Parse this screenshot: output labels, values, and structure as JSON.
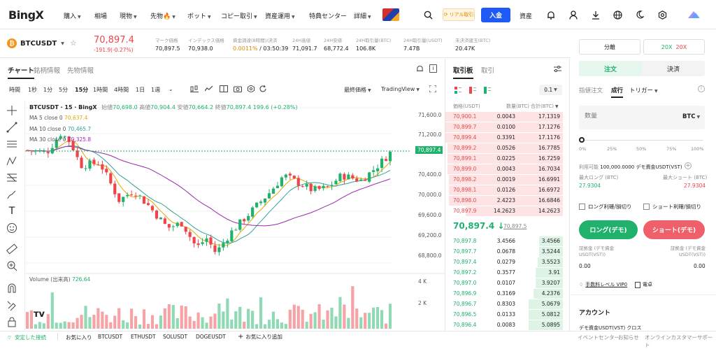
{
  "nav": {
    "logo": "BingX",
    "items": [
      "購入",
      "相場",
      "現物",
      "先物",
      "ボット",
      "コピー取引",
      "資産運用",
      "特典センター",
      "詳細"
    ],
    "reward_label": "リアル取引",
    "deposit_label": "入金",
    "assets_label": "資産"
  },
  "ticker": {
    "symbol": "BTCUSDT",
    "price": "70,897.4",
    "change": "-191.9(-0.27%)",
    "stats": [
      {
        "label": "マーク価格",
        "value": "70,897.5"
      },
      {
        "label": "インデックス価格",
        "value": "70,938.0"
      },
      {
        "label": "資金調達(8時間)/決済",
        "value": "0.0011%",
        "value2": "/ 03:50:39"
      },
      {
        "label": "24H高値",
        "value": "71,091.7"
      },
      {
        "label": "24H安値",
        "value": "68,772.4"
      },
      {
        "label": "24H取引量(BTC)",
        "value": "106.8K"
      },
      {
        "label": "24H取引量(USDT)",
        "value": "7.47B"
      },
      {
        "label": "未決済建玉(BTC)",
        "value": "20.47K"
      }
    ]
  },
  "chart": {
    "tabs": [
      "チャート",
      "銘柄情報",
      "先物情報"
    ],
    "timeframes": [
      "時間",
      "1秒",
      "1分",
      "5分",
      "15分",
      "1時間",
      "4時間",
      "1日",
      "1週"
    ],
    "price_type": "最終価格",
    "view": "TradingView",
    "title": "BTCUSDT · 15 · BingX",
    "ohlc": {
      "o_label": "始値",
      "o": "70,698.0",
      "h_label": "高値",
      "h": "70,904.4",
      "l_label": "安値",
      "l": "70,664.2",
      "c_label": "終値",
      "c": "70,897.4",
      "chg": "199.6 (+0.28%)"
    },
    "ma": [
      {
        "label": "MA 5 close 0",
        "value": "70,637.4",
        "color": "#e6a700"
      },
      {
        "label": "MA 10 close 0",
        "value": "70,465.7",
        "color": "#2fa39a"
      },
      {
        "label": "MA 30 close 0",
        "value": "70,325.8",
        "color": "#9c27b0"
      }
    ],
    "price_axis": [
      "71,600.0",
      "71,200.0",
      "70,400.0",
      "70,000.0",
      "69,600.0",
      "69,200.0",
      "68,800.0"
    ],
    "current_price_tag": "70,897.4",
    "volume_label": "Volume (出来高)",
    "volume_value": "726.64",
    "vol_axis": [
      "4 K",
      "2 K"
    ]
  },
  "orderbook": {
    "tabs": [
      "取引板",
      "取引"
    ],
    "step": "0.1",
    "headers": [
      "価格(USDT)",
      "数量(BTC)",
      "合計(BTC)"
    ],
    "asks": [
      [
        "70,900.1",
        "0.0043",
        "17.1319"
      ],
      [
        "70,899.7",
        "0.0100",
        "17.1276"
      ],
      [
        "70,899.4",
        "0.3391",
        "17.1176"
      ],
      [
        "70,899.2",
        "0.0526",
        "16.7785"
      ],
      [
        "70,899.1",
        "0.0225",
        "16.7259"
      ],
      [
        "70,899.0",
        "0.0043",
        "16.7034"
      ],
      [
        "70,898.2",
        "0.0019",
        "16.6991"
      ],
      [
        "70,898.1",
        "0.0126",
        "16.6972"
      ],
      [
        "70,898.0",
        "2.4223",
        "16.6846"
      ],
      [
        "70,897.9",
        "14.2623",
        "14.2623"
      ]
    ],
    "mid_price": "70,897.4",
    "mid_arrow": "↓",
    "mark_price": "70,897.5",
    "bids": [
      [
        "70,897.8",
        "3.4566",
        "3.4566"
      ],
      [
        "70,897.7",
        "0.0678",
        "3.5244"
      ],
      [
        "70,897.4",
        "0.0279",
        "3.5523"
      ],
      [
        "70,897.2",
        "0.3577",
        "3.91"
      ],
      [
        "70,897.0",
        "0.0107",
        "3.9207"
      ],
      [
        "70,896.9",
        "0.3169",
        "4.2376"
      ],
      [
        "70,896.7",
        "0.8303",
        "5.0679"
      ],
      [
        "70,896.5",
        "0.0133",
        "5.0812"
      ],
      [
        "70,896.4",
        "0.0083",
        "5.0895"
      ]
    ],
    "ask_depth": [
      0.99,
      0.99,
      0.99,
      0.97,
      0.97,
      0.97,
      0.96,
      0.96,
      0.96,
      0.82
    ],
    "bid_depth": [
      0.2,
      0.2,
      0.21,
      0.23,
      0.23,
      0.25,
      0.29,
      0.29,
      0.29
    ]
  },
  "trade": {
    "margin_mode": "分離",
    "leverage_long": "20X",
    "leverage_short": "20X",
    "side_tabs": [
      "注文",
      "決済"
    ],
    "order_types": [
      "指値注文",
      "成行",
      "トリガー"
    ],
    "qty_placeholder": "数量",
    "qty_unit": "BTC",
    "slider_marks": [
      "0%",
      "25%",
      "50%",
      "75%",
      "100%"
    ],
    "available_label": "利用可能",
    "available_value": "100,000.0000 デモ資金USDT(VST)",
    "max_long_label": "最大ロング (BTC)",
    "max_long_value": "27.9304",
    "max_short_label": "最大ショート (BTC)",
    "max_short_value": "27.9304",
    "tp_long": "ロング利確/損切り",
    "tp_short": "ショート利確/損切り",
    "long_button": "ロング(デモ)",
    "short_button": "ショート(デモ)",
    "margin_label": "証拠金 (デモ資金USDT(VST))",
    "margin_left": "0.00",
    "margin_right": "0.00",
    "fee_label": "手数料レベル VIP0",
    "calc_label": "電卓",
    "account_label": "アカウント",
    "account_sub": "デモ資金USDT(VST) クロス"
  },
  "bottom": {
    "connection": "安定した接続",
    "favorites_label": "お気に入り",
    "favorites": [
      "BTCUSDT",
      "ETHUSDT",
      "SOLUSDT",
      "DOGEUSDT"
    ],
    "add_fav": "お気に入り追加",
    "links": [
      "イベントセンター",
      "お知らせ",
      "オンラインカスタマーサポート"
    ]
  },
  "colors": {
    "up": "#20b26c",
    "down": "#ef454a",
    "accent": "#1f5af6",
    "fire": "#f5a623"
  }
}
